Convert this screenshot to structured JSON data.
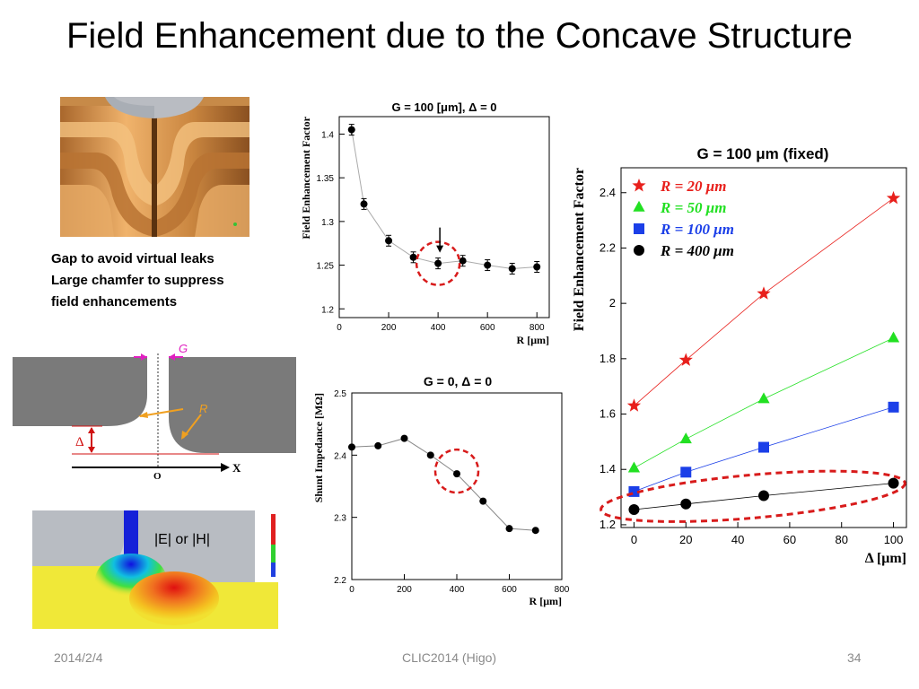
{
  "title": "Field Enhancement due to the Concave Structure",
  "caption": {
    "lines": [
      "Gap to avoid virtual leaks",
      "Large chamfer to suppress",
      "field enhancements"
    ]
  },
  "footer": {
    "date": "2014/2/4",
    "center": "CLIC2014 (Higo)",
    "page": "34"
  },
  "diagram": {
    "gap_label": "G",
    "radius_label": "R",
    "delta_label": "Δ",
    "origin_label": "O",
    "axis_label": "X"
  },
  "field_map": {
    "label": "|E| or |H|"
  },
  "colors": {
    "red": "#e8201c",
    "green": "#22e022",
    "blue": "#1b3fe8",
    "black": "#000000",
    "highlight_circle": "#d81b1b",
    "copper": "#d99a52",
    "metal_gray": "#7a7a7a"
  },
  "chart_data": [
    {
      "type": "scatter",
      "title": "G = 100 [μm],  Δ = 0",
      "xlabel": "R  [μm]",
      "ylabel": "Field Enhancement Factor",
      "xlim": [
        0,
        850
      ],
      "ylim": [
        1.19,
        1.42
      ],
      "xticks": [
        0,
        200,
        400,
        600,
        800
      ],
      "yticks": [
        1.2,
        1.25,
        1.3,
        1.35,
        1.4
      ],
      "ytick_labels": [
        "1.2",
        "1.25",
        "1.3",
        "1.35",
        "1.4"
      ],
      "x": [
        50,
        100,
        200,
        300,
        400,
        500,
        600,
        700,
        800
      ],
      "y": [
        1.405,
        1.32,
        1.278,
        1.259,
        1.252,
        1.255,
        1.25,
        1.246,
        1.248
      ],
      "error_bars": true,
      "highlight_x": 400,
      "grid": false
    },
    {
      "type": "scatter",
      "title": "G = 0,  Δ = 0",
      "xlabel": "R  [μm]",
      "ylabel": "Shunt Impedance  [MΩ]",
      "xlim": [
        0,
        800
      ],
      "ylim": [
        2.2,
        2.5
      ],
      "xticks": [
        0,
        200,
        400,
        600,
        800
      ],
      "yticks": [
        2.2,
        2.3,
        2.4,
        2.5
      ],
      "ytick_labels": [
        "2.2",
        "2.3",
        "2.4",
        "2.5"
      ],
      "x": [
        0,
        100,
        200,
        300,
        400,
        500,
        600,
        700
      ],
      "y": [
        2.413,
        2.415,
        2.427,
        2.4,
        2.37,
        2.326,
        2.282,
        2.279
      ],
      "highlight_x": 400,
      "grid": false
    },
    {
      "type": "line",
      "title": "G = 100 μm (fixed)",
      "xlabel": "Δ   [μm]",
      "ylabel": "Field Enhancement Factor",
      "xlim": [
        -5,
        105
      ],
      "ylim": [
        1.19,
        2.49
      ],
      "xticks": [
        0,
        20,
        40,
        60,
        80,
        100
      ],
      "yticks": [
        1.2,
        1.4,
        1.6,
        1.8,
        2,
        2.2,
        2.4
      ],
      "ytick_labels": [
        "1.2",
        "1.4",
        "1.6",
        "1.8",
        "2",
        "2.2",
        "2.4"
      ],
      "x": [
        0,
        20,
        50,
        100
      ],
      "legend_position": "top-left",
      "series": [
        {
          "name": "R =  20 μm",
          "marker": "star",
          "color": "#e8201c",
          "values": [
            1.63,
            1.795,
            2.035,
            2.38
          ]
        },
        {
          "name": "R =  50 μm",
          "marker": "triangle",
          "color": "#22e022",
          "values": [
            1.405,
            1.51,
            1.655,
            1.875
          ]
        },
        {
          "name": "R = 100 μm",
          "marker": "square",
          "color": "#1b3fe8",
          "values": [
            1.32,
            1.39,
            1.48,
            1.625
          ]
        },
        {
          "name": "R = 400 μm",
          "marker": "circle",
          "color": "#000000",
          "values": [
            1.255,
            1.275,
            1.305,
            1.35
          ]
        }
      ],
      "highlight_series": "R = 400 μm",
      "grid": false
    }
  ]
}
